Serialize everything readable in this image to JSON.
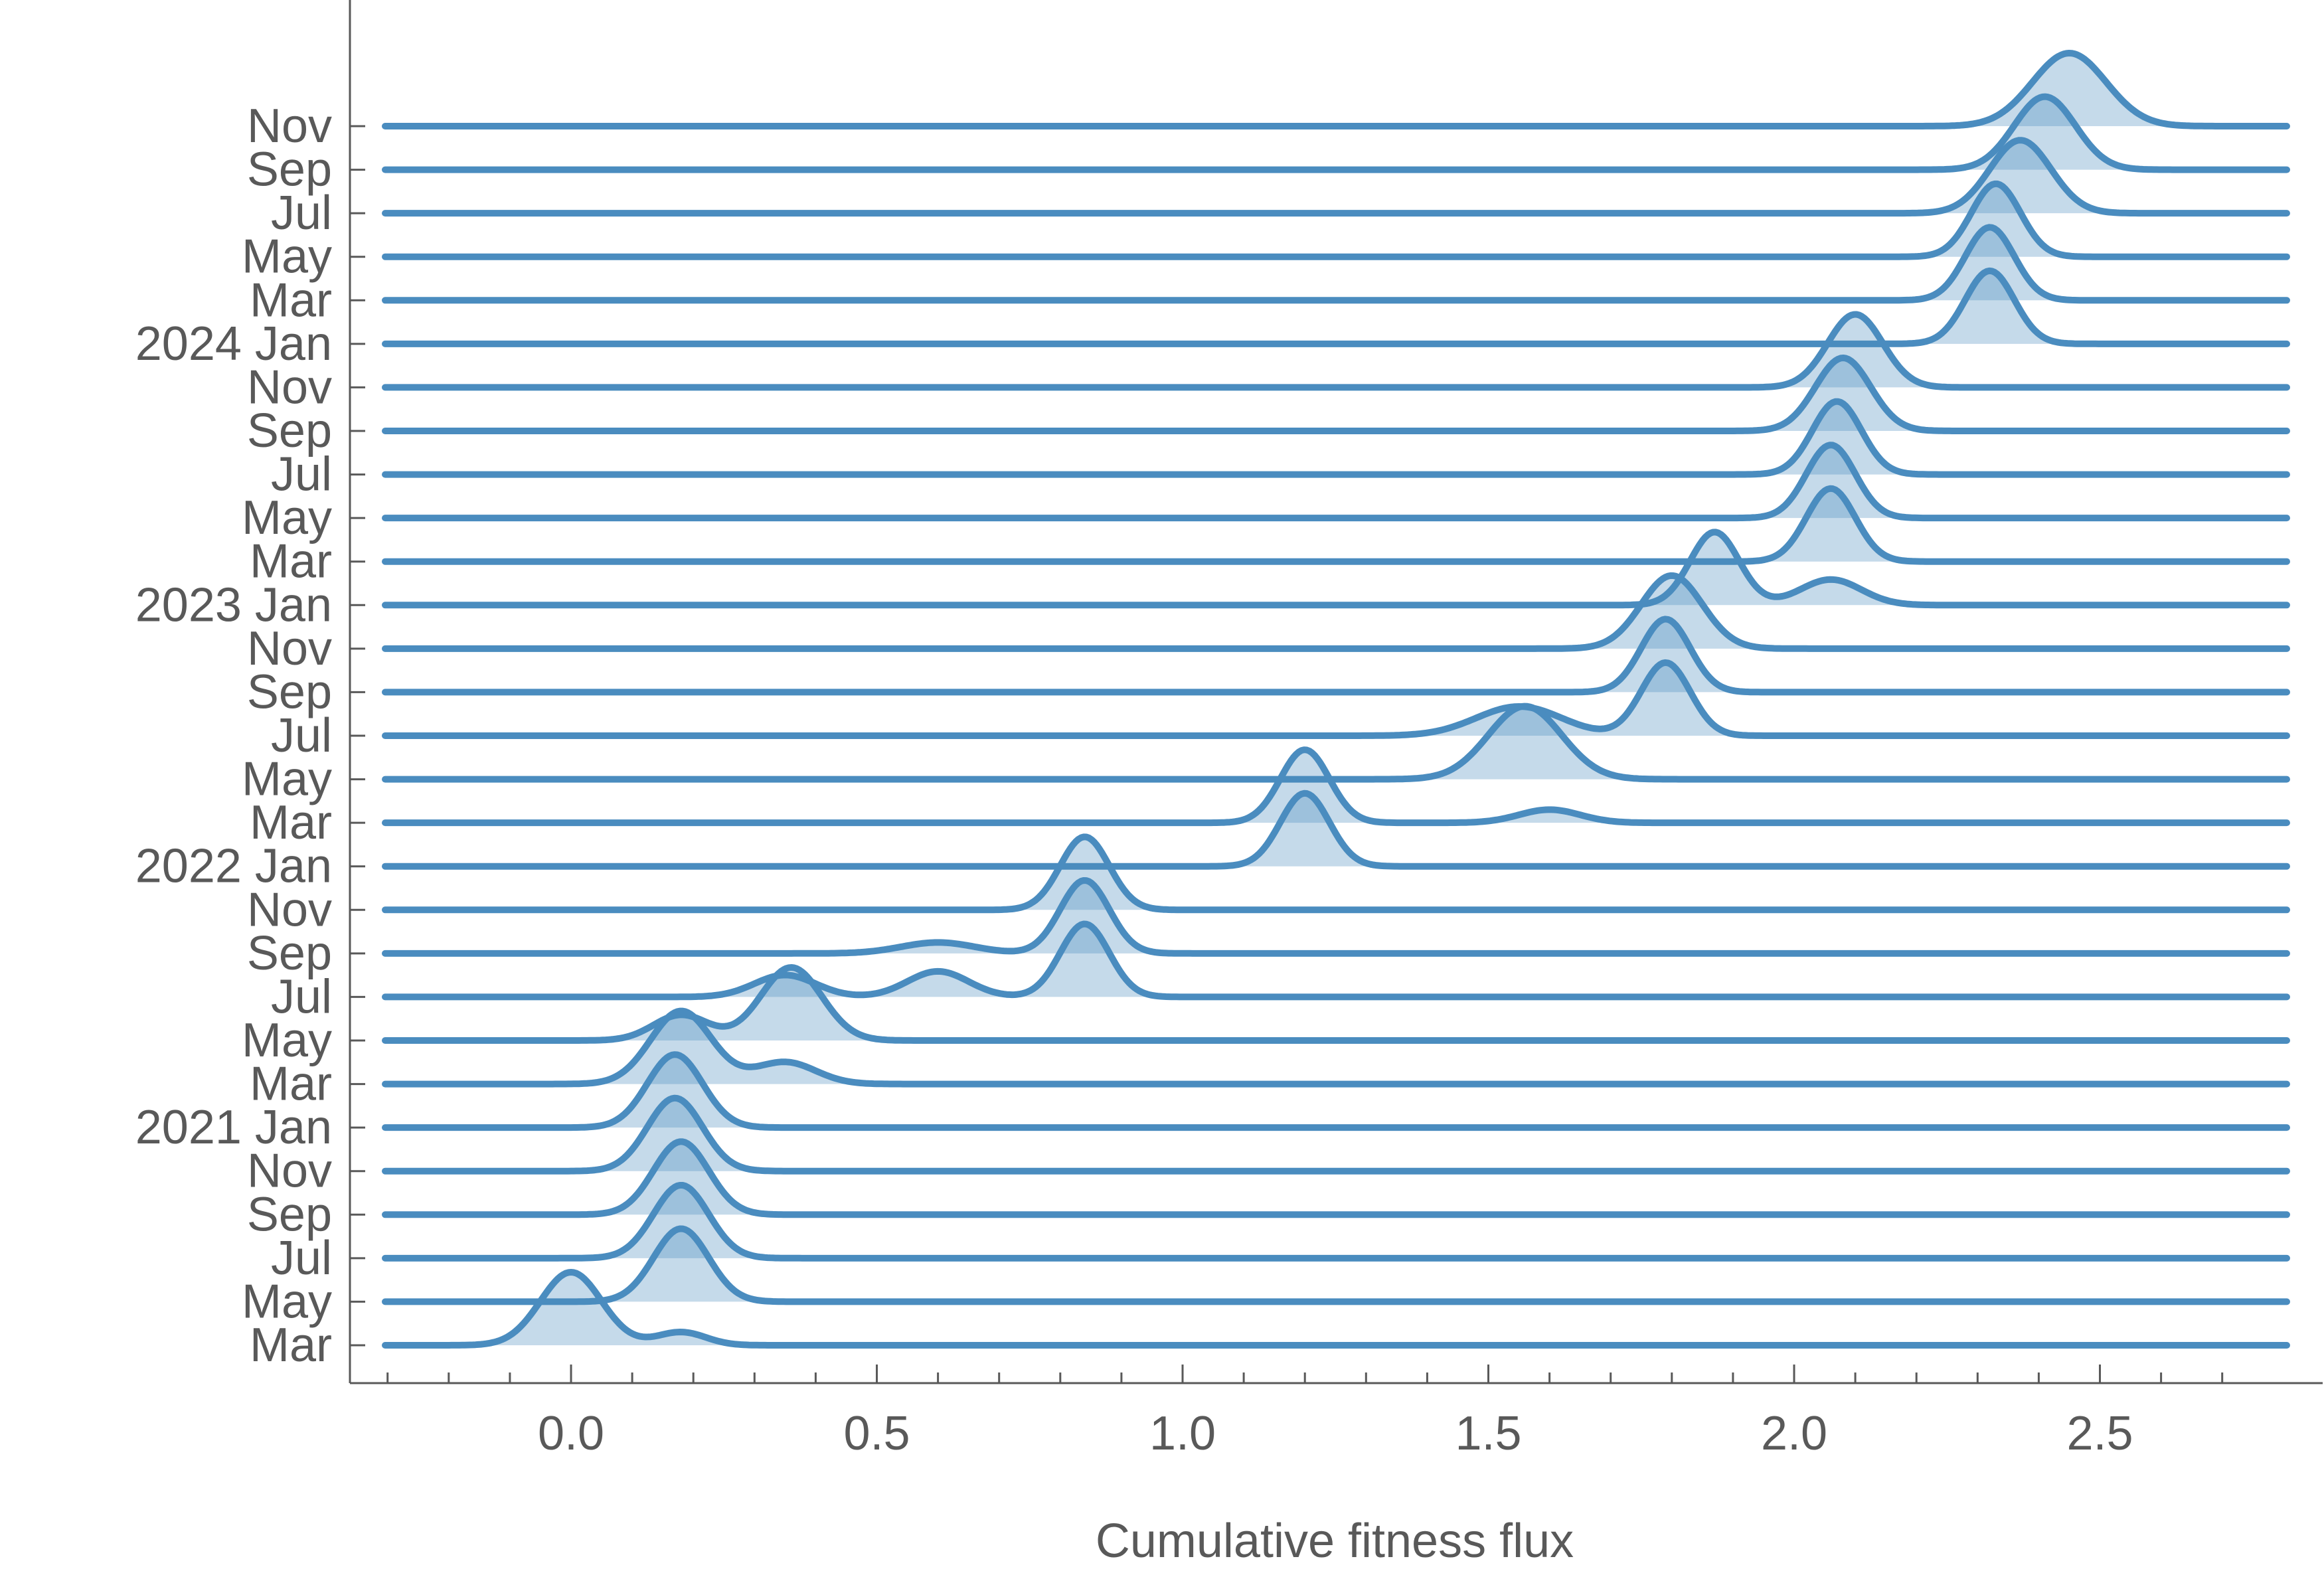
{
  "chart_data": {
    "type": "ridgeline",
    "xlabel": "Cumulative fitness flux",
    "ylabel": "",
    "xlim": [
      -0.31,
      2.8
    ],
    "x_ticks": [
      0.0,
      0.5,
      1.0,
      1.5,
      2.0,
      2.5
    ],
    "x_tick_labels": [
      "0.0",
      "0.5",
      "1.0",
      "1.5",
      "2.0",
      "2.5"
    ],
    "x_minor_tick_step": 0.1,
    "grid": false,
    "colors": {
      "line": "#4a8cbf",
      "fill": "#4a8cbf",
      "axis": "#595959"
    },
    "series": [
      {
        "label": "Mar",
        "peaks": [
          [
            0.0,
            0.05,
            1.0
          ],
          [
            0.18,
            0.04,
            0.18
          ]
        ]
      },
      {
        "label": "May",
        "peaks": [
          [
            0.18,
            0.045,
            1.0
          ]
        ]
      },
      {
        "label": "Jul",
        "peaks": [
          [
            0.18,
            0.045,
            1.0
          ]
        ]
      },
      {
        "label": "Sep",
        "peaks": [
          [
            0.18,
            0.045,
            1.0
          ]
        ]
      },
      {
        "label": "Nov",
        "peaks": [
          [
            0.17,
            0.045,
            1.0
          ]
        ]
      },
      {
        "label": "2021 Jan",
        "peaks": [
          [
            0.17,
            0.045,
            1.0
          ]
        ]
      },
      {
        "label": "Mar",
        "peaks": [
          [
            0.18,
            0.05,
            1.0
          ],
          [
            0.35,
            0.05,
            0.3
          ]
        ]
      },
      {
        "label": "May",
        "peaks": [
          [
            0.18,
            0.045,
            0.35
          ],
          [
            0.36,
            0.05,
            1.0
          ]
        ]
      },
      {
        "label": "Jul",
        "peaks": [
          [
            0.35,
            0.05,
            0.3
          ],
          [
            0.6,
            0.05,
            0.35
          ],
          [
            0.84,
            0.04,
            1.0
          ]
        ]
      },
      {
        "label": "Sep",
        "peaks": [
          [
            0.6,
            0.06,
            0.15
          ],
          [
            0.84,
            0.04,
            1.0
          ]
        ]
      },
      {
        "label": "Nov",
        "peaks": [
          [
            0.84,
            0.04,
            1.0
          ]
        ]
      },
      {
        "label": "2022 Jan",
        "peaks": [
          [
            1.2,
            0.04,
            1.0
          ]
        ]
      },
      {
        "label": "Mar",
        "peaks": [
          [
            1.2,
            0.04,
            1.0
          ],
          [
            1.6,
            0.05,
            0.18
          ]
        ]
      },
      {
        "label": "May",
        "peaks": [
          [
            1.56,
            0.06,
            1.0
          ]
        ]
      },
      {
        "label": "Jul",
        "peaks": [
          [
            1.55,
            0.07,
            0.4
          ],
          [
            1.79,
            0.04,
            1.0
          ]
        ]
      },
      {
        "label": "Sep",
        "peaks": [
          [
            1.79,
            0.04,
            1.0
          ]
        ]
      },
      {
        "label": "Nov",
        "peaks": [
          [
            1.8,
            0.05,
            1.0
          ]
        ]
      },
      {
        "label": "2023 Jan",
        "peaks": [
          [
            1.87,
            0.04,
            1.0
          ],
          [
            2.06,
            0.05,
            0.35
          ]
        ]
      },
      {
        "label": "Mar",
        "peaks": [
          [
            2.06,
            0.04,
            1.0
          ]
        ]
      },
      {
        "label": "May",
        "peaks": [
          [
            2.06,
            0.04,
            1.0
          ]
        ]
      },
      {
        "label": "Jul",
        "peaks": [
          [
            2.07,
            0.04,
            1.0
          ]
        ]
      },
      {
        "label": "Sep",
        "peaks": [
          [
            2.08,
            0.045,
            1.0
          ]
        ]
      },
      {
        "label": "Nov",
        "peaks": [
          [
            2.1,
            0.045,
            1.0
          ]
        ]
      },
      {
        "label": "2024 Jan",
        "peaks": [
          [
            2.32,
            0.04,
            1.0
          ]
        ]
      },
      {
        "label": "Mar",
        "peaks": [
          [
            2.32,
            0.04,
            1.0
          ]
        ]
      },
      {
        "label": "May",
        "peaks": [
          [
            2.33,
            0.04,
            1.0
          ]
        ]
      },
      {
        "label": "Jul",
        "peaks": [
          [
            2.37,
            0.05,
            1.0
          ]
        ]
      },
      {
        "label": "Sep",
        "peaks": [
          [
            2.41,
            0.05,
            1.0
          ]
        ]
      },
      {
        "label": "Nov",
        "peaks": [
          [
            2.45,
            0.06,
            1.0
          ]
        ]
      }
    ]
  }
}
